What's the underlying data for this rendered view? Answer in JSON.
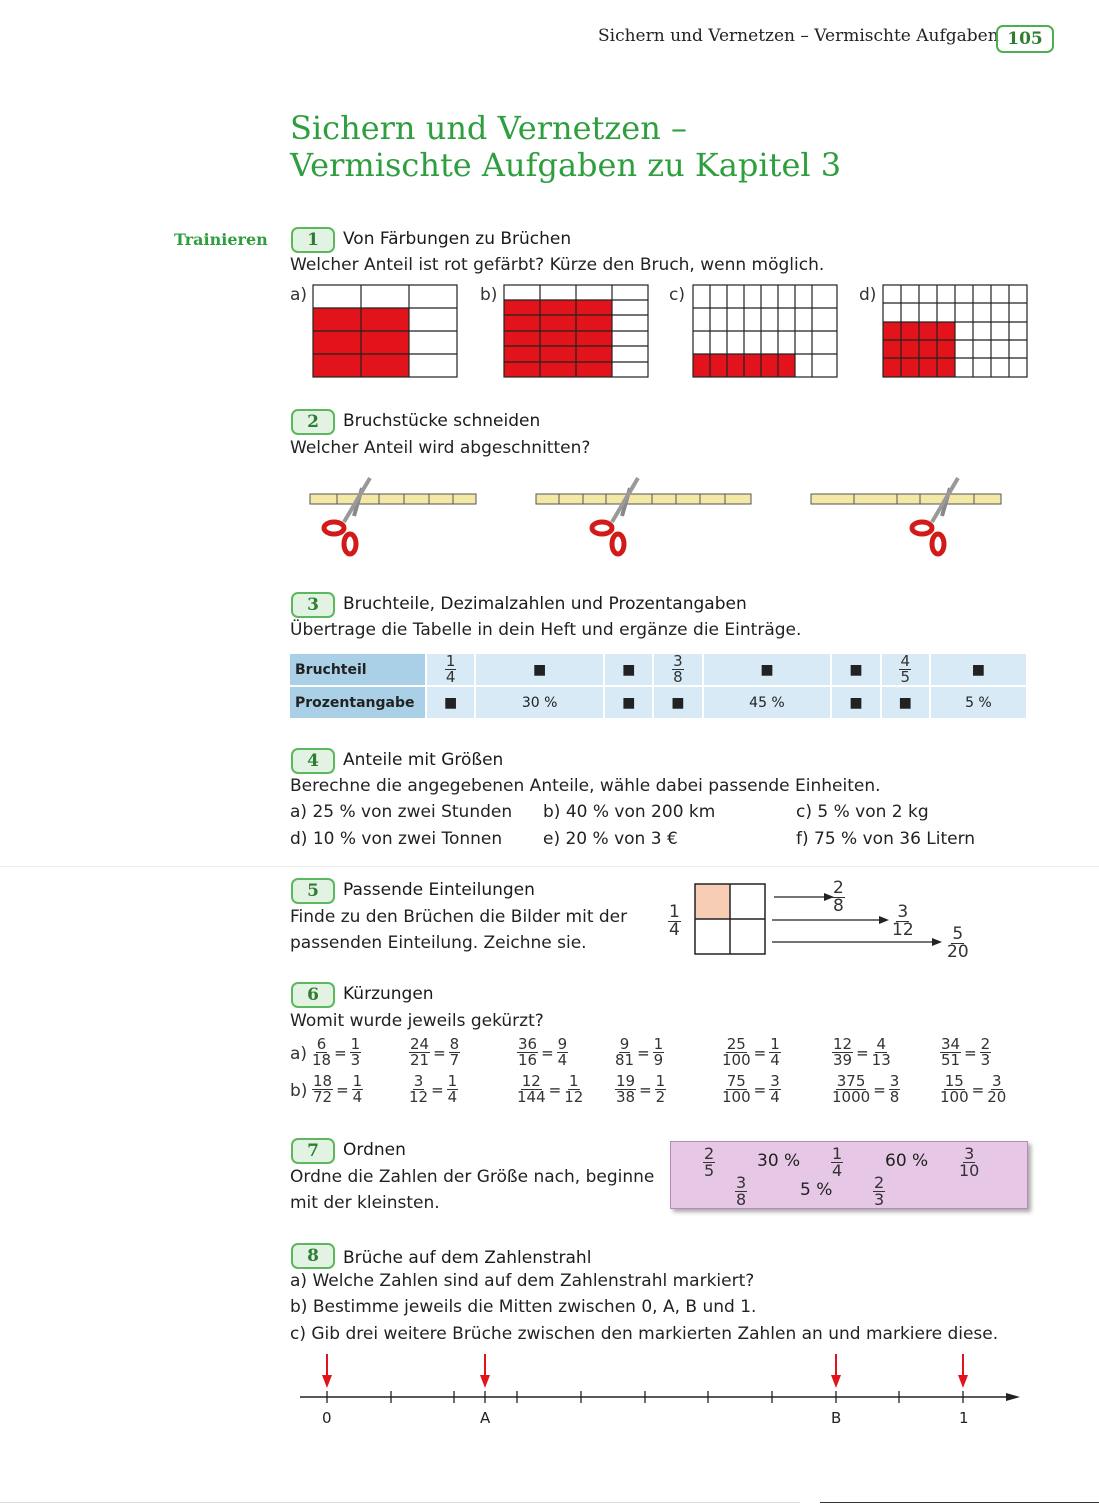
{
  "header": {
    "running_title": "Sichern und Vernetzen – Vermischte Aufgaben",
    "page_number": "105"
  },
  "page_title": {
    "line1": "Sichern und Vernetzen –",
    "line2": "Vermischte Aufgaben zu Kapitel 3"
  },
  "side_label": "Trainieren",
  "tasks": [
    {
      "num": "1",
      "title": "Von Färbungen zu Brüchen",
      "text": "Welcher Anteil ist rot gefärbt? Kürze den Bruch, wenn möglich.",
      "labels": [
        "a)",
        "b)",
        "c)",
        "d)"
      ]
    },
    {
      "num": "2",
      "title": "Bruchstücke schneiden",
      "text": "Welcher Anteil wird abgeschnitten?"
    },
    {
      "num": "3",
      "title": "Bruchteile, Dezimalzahlen und Prozentangaben",
      "text": "Übertrage die Tabelle in dein Heft und ergänze die Einträge."
    },
    {
      "num": "4",
      "title": "Anteile mit Größen",
      "text": "Berechne die angegebenen Anteile, wähle dabei passende Einheiten.",
      "items": [
        "a) 25 % von zwei Stunden",
        "b) 40 % von 200 km",
        "c) 5 % von 2 kg",
        "d) 10 % von zwei Tonnen",
        "e) 20 % von 3 €",
        "f) 75 % von 36 Litern"
      ]
    },
    {
      "num": "5",
      "title": "Passende Einteilungen",
      "text1": "Finde zu den Brüchen die Bilder mit der",
      "text2": "passenden Einteilung. Zeichne sie."
    },
    {
      "num": "6",
      "title": "Kürzungen",
      "text": "Womit wurde jeweils gekürzt?",
      "row_a": "a)",
      "row_b": "b)"
    },
    {
      "num": "7",
      "title": "Ordnen",
      "text1": "Ordne die Zahlen der Größe nach, beginne",
      "text2": "mit der kleinsten."
    },
    {
      "num": "8",
      "title": "Brüche auf dem Zahlenstrahl",
      "items": [
        "a) Welche Zahlen sind auf dem Zahlenstrahl markiert?",
        "b) Bestimme jeweils die Mitten zwischen 0, A, B und 1.",
        "c) Gib drei weitere Brüche zwischen den markierten Zahlen an und markiere diese."
      ],
      "axis_labels": [
        "0",
        "A",
        "B",
        "1"
      ]
    }
  ],
  "table": {
    "row1_header": "Bruchteil",
    "row2_header": "Prozentangabe",
    "row1": [
      {
        "n": "1",
        "d": "4"
      },
      "■",
      "■",
      {
        "n": "3",
        "d": "8"
      },
      "■",
      "■",
      {
        "n": "4",
        "d": "5"
      },
      "■"
    ],
    "row2": [
      "■",
      "30 %",
      "■",
      "■",
      "45 %",
      "■",
      "■",
      "5 %"
    ]
  },
  "task5_fractions": {
    "main": {
      "n": "1",
      "d": "4"
    },
    "targets": [
      {
        "n": "2",
        "d": "8"
      },
      {
        "n": "3",
        "d": "12"
      },
      {
        "n": "5",
        "d": "20"
      }
    ]
  },
  "task6": {
    "row_a": [
      [
        "6",
        "18",
        "1",
        "3"
      ],
      [
        "24",
        "21",
        "8",
        "7"
      ],
      [
        "36",
        "16",
        "9",
        "4"
      ],
      [
        "9",
        "81",
        "1",
        "9"
      ],
      [
        "25",
        "100",
        "1",
        "4"
      ],
      [
        "12",
        "39",
        "4",
        "13"
      ],
      [
        "34",
        "51",
        "2",
        "3"
      ]
    ],
    "row_b": [
      [
        "18",
        "72",
        "1",
        "4"
      ],
      [
        "3",
        "12",
        "1",
        "4"
      ],
      [
        "12",
        "144",
        "1",
        "12"
      ],
      [
        "19",
        "38",
        "1",
        "2"
      ],
      [
        "75",
        "100",
        "3",
        "4"
      ],
      [
        "375",
        "1000",
        "3",
        "8"
      ],
      [
        "15",
        "100",
        "3",
        "20"
      ]
    ]
  },
  "task7_numbers": {
    "f1": {
      "n": "2",
      "d": "5"
    },
    "p1": "30 %",
    "f2": {
      "n": "1",
      "d": "4"
    },
    "p2": "60 %",
    "f3": {
      "n": "3",
      "d": "10"
    },
    "f4": {
      "n": "3",
      "d": "8"
    },
    "p3": "5 %",
    "f5": {
      "n": "2",
      "d": "3"
    }
  },
  "colors": {
    "green": "#2e9e3e",
    "red": "#e2131b",
    "table_blue": "#d7eaf5",
    "pink_box": "#e6c7e6"
  }
}
